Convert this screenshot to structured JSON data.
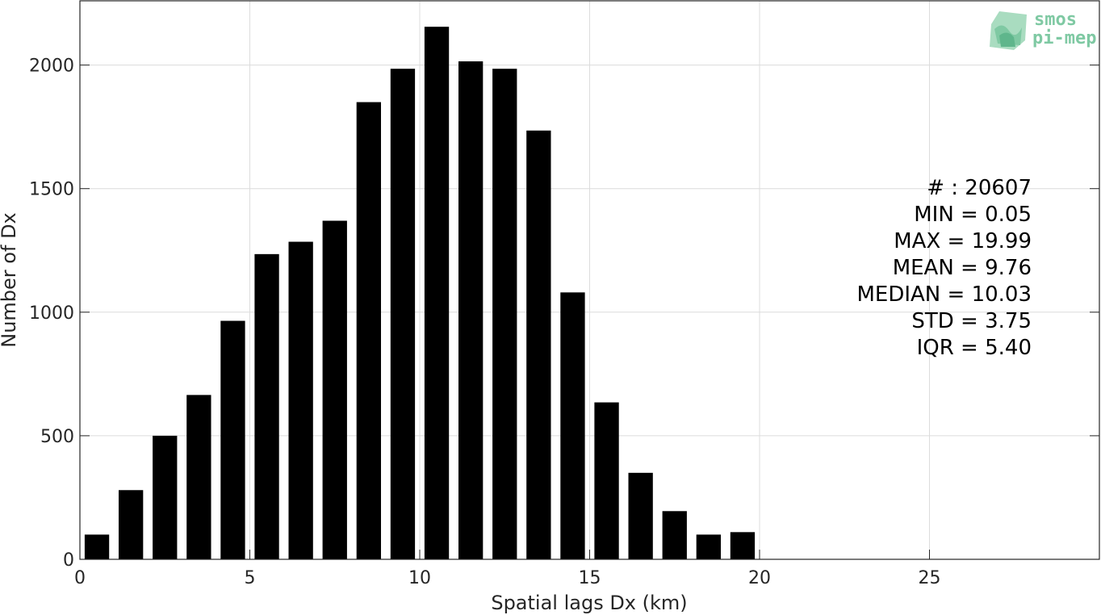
{
  "chart_data": {
    "type": "bar",
    "xlabel": "Spatial lags Dx (km)",
    "ylabel": "Number of Dx",
    "xlim": [
      0,
      30
    ],
    "ylim": [
      0,
      2260
    ],
    "xticks": [
      0,
      5,
      10,
      15,
      20,
      25
    ],
    "yticks": [
      0,
      500,
      1000,
      1500,
      2000
    ],
    "grid": true,
    "bar_color": "#000000",
    "grid_color": "#dcdcdc",
    "x": [
      0.5,
      1.5,
      2.5,
      3.5,
      4.5,
      5.5,
      6.5,
      7.5,
      8.5,
      9.5,
      10.5,
      11.5,
      12.5,
      13.5,
      14.5,
      15.5,
      16.5,
      17.5,
      18.5,
      19.5
    ],
    "values": [
      100,
      280,
      500,
      665,
      965,
      1235,
      1285,
      1370,
      1850,
      1985,
      2155,
      2015,
      1985,
      1735,
      1080,
      635,
      350,
      195,
      100,
      110
    ],
    "stats": [
      "# : 20607",
      "MIN = 0.05",
      "MAX =  19.99",
      "MEAN = 9.76",
      "MEDIAN = 10.03",
      "STD = 3.75",
      "IQR = 5.40"
    ]
  },
  "logo": {
    "line1": "smos",
    "line2": "pi-mep",
    "color": "#7fc9a3"
  }
}
